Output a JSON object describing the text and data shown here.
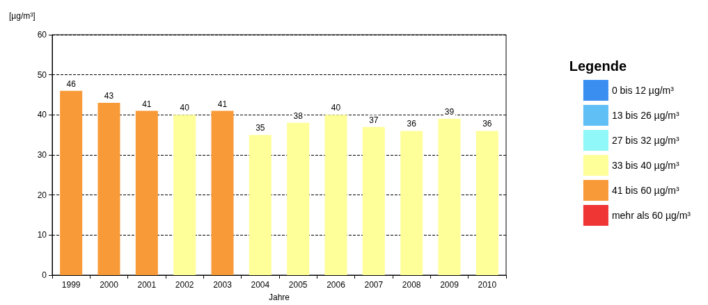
{
  "chart_data": {
    "type": "bar",
    "stacked": true,
    "xlabel": "Jahre",
    "ylabel": "[µg/m³]",
    "legend_title": "Legende",
    "categories": [
      "1999",
      "2000",
      "2001",
      "2002",
      "2003",
      "2004",
      "2005",
      "2006",
      "2007",
      "2008",
      "2009",
      "2010"
    ],
    "series": [
      {
        "name": "0 bis 12 µg/m³",
        "color": "#3a8ef0",
        "values": [
          null,
          null,
          null,
          null,
          null,
          null,
          null,
          null,
          null,
          null,
          null,
          null
        ]
      },
      {
        "name": "13 bis 26 µg/m³",
        "color": "#60bff5",
        "values": [
          null,
          null,
          null,
          null,
          null,
          null,
          null,
          null,
          null,
          null,
          null,
          null
        ]
      },
      {
        "name": "27 bis 32 µg/m³",
        "color": "#90f8f8",
        "values": [
          null,
          null,
          null,
          null,
          null,
          null,
          null,
          null,
          null,
          null,
          null,
          null
        ]
      },
      {
        "name": "33 bis 40 µg/m³",
        "color": "#ffff99",
        "values": [
          null,
          null,
          null,
          40,
          null,
          35,
          38,
          40,
          37,
          36,
          39,
          36
        ]
      },
      {
        "name": "41 bis 60 µg/m³",
        "color": "#f89a38",
        "values": [
          46,
          43,
          41,
          null,
          41,
          null,
          null,
          null,
          null,
          null,
          null,
          null
        ]
      },
      {
        "name": "mehr als 60 µg/m³",
        "color": "#f03535",
        "values": [
          null,
          null,
          null,
          null,
          null,
          null,
          null,
          null,
          null,
          null,
          null,
          null
        ]
      }
    ],
    "ylim": [
      0,
      60
    ],
    "yticks": [
      0,
      10,
      20,
      30,
      40,
      50,
      60
    ],
    "grid": "y",
    "legend": "right",
    "data_labels": true
  }
}
